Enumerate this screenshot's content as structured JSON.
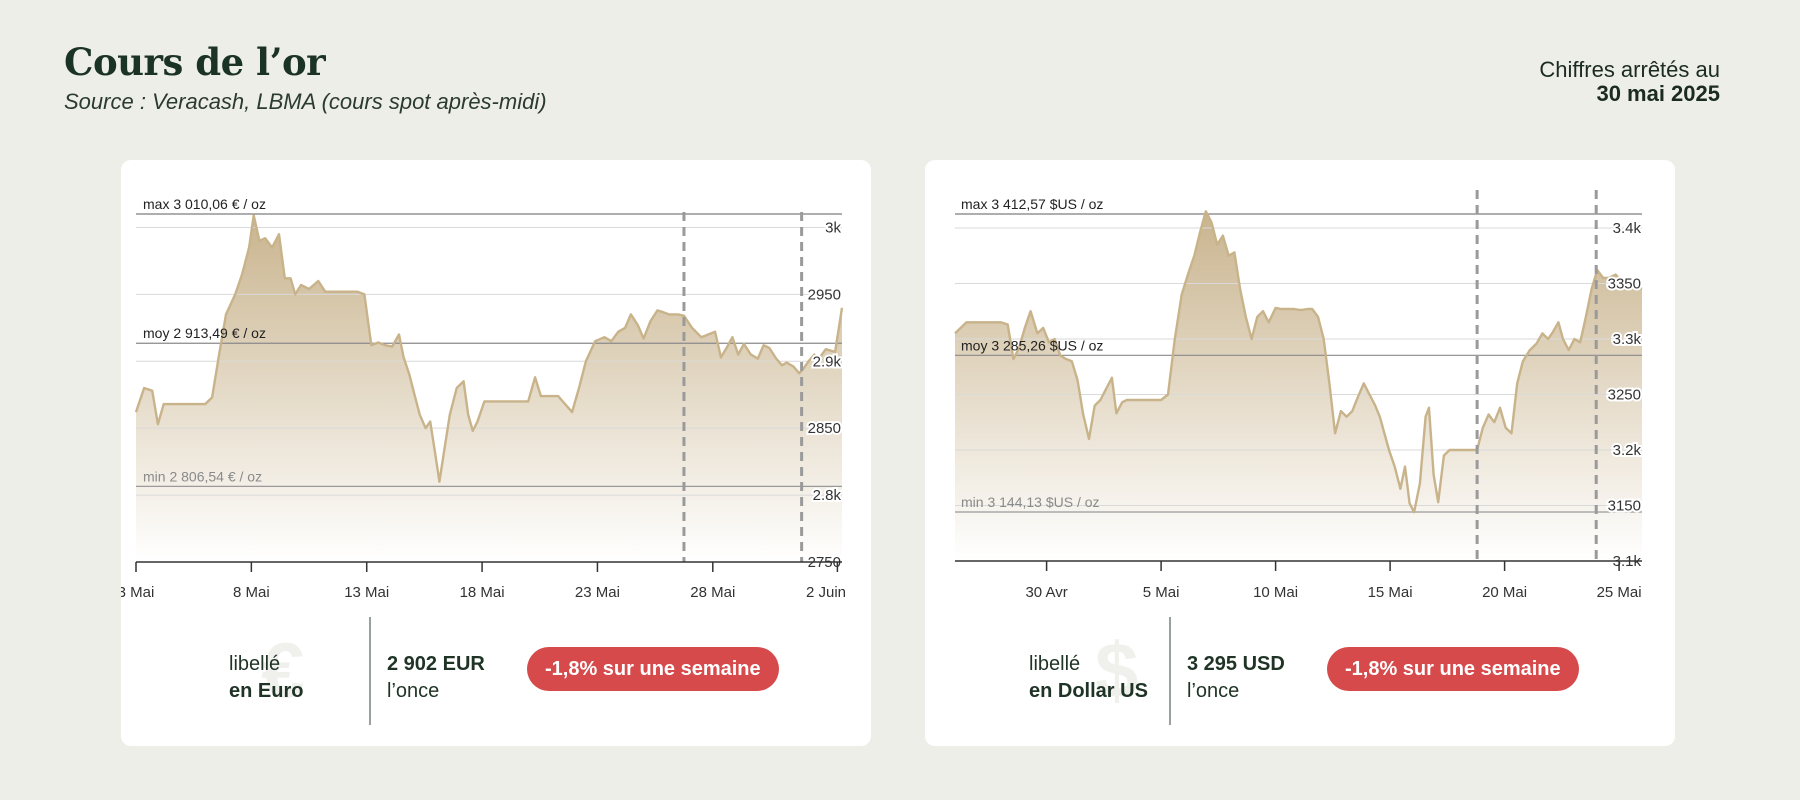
{
  "header": {
    "title": "Cours de l’or",
    "subtitle": "Source : Veracash, LBMA (cours spot après-midi)",
    "date_label": "Chiffres arrêtés au",
    "date_value": "30 mai 2025"
  },
  "colors": {
    "background": "#eeeee8",
    "card": "#ffffff",
    "area_top": "#c9b48e",
    "area_line": "#c8b38a",
    "badge": "#d64a4b",
    "text_dark": "#1f3326"
  },
  "chart_data": [
    {
      "type": "area",
      "xlabels": [
        "3 Mai",
        "8 Mai",
        "13 Mai",
        "18 Mai",
        "23 Mai",
        "28 Mai",
        "2 Juin"
      ],
      "xlim": [
        0,
        30.6
      ],
      "ylim": [
        2750,
        3010.06
      ],
      "yticks": [
        {
          "v": 3000,
          "label": "3k"
        },
        {
          "v": 2950,
          "label": "2950"
        },
        {
          "v": 2900,
          "label": "2.9k"
        },
        {
          "v": 2850,
          "label": "2850"
        },
        {
          "v": 2800,
          "label": "2.8k"
        },
        {
          "v": 2750,
          "label": "2750"
        }
      ],
      "max": {
        "value": 3010.06,
        "label": "max 3 010,06 € / oz"
      },
      "avg": {
        "value": 2913.49,
        "label": "moy 2 913,49 € / oz"
      },
      "min": {
        "value": 2806.54,
        "label": "min 2 806,54 € / oz"
      },
      "vlines": [
        23.75,
        28.85
      ],
      "points": [
        [
          0,
          2862
        ],
        [
          0.35,
          2880
        ],
        [
          0.7,
          2878
        ],
        [
          0.95,
          2853
        ],
        [
          1.2,
          2868
        ],
        [
          1.5,
          2868
        ],
        [
          2,
          2868
        ],
        [
          2.6,
          2868
        ],
        [
          3,
          2868
        ],
        [
          3.3,
          2873
        ],
        [
          3.6,
          2905
        ],
        [
          3.9,
          2935
        ],
        [
          4.3,
          2950
        ],
        [
          4.6,
          2965
        ],
        [
          4.9,
          2985
        ],
        [
          5.1,
          3009
        ],
        [
          5.35,
          2990
        ],
        [
          5.6,
          2992
        ],
        [
          5.9,
          2985
        ],
        [
          6.2,
          2995
        ],
        [
          6.45,
          2962
        ],
        [
          6.7,
          2962
        ],
        [
          6.9,
          2950
        ],
        [
          7.15,
          2957
        ],
        [
          7.5,
          2954
        ],
        [
          7.9,
          2960
        ],
        [
          8.2,
          2952
        ],
        [
          8.7,
          2952
        ],
        [
          9.2,
          2952
        ],
        [
          9.6,
          2952
        ],
        [
          9.9,
          2950
        ],
        [
          10.2,
          2912
        ],
        [
          10.5,
          2914
        ],
        [
          10.8,
          2912
        ],
        [
          11.1,
          2911
        ],
        [
          11.4,
          2920
        ],
        [
          11.6,
          2903
        ],
        [
          11.85,
          2890
        ],
        [
          12.1,
          2873
        ],
        [
          12.3,
          2860
        ],
        [
          12.55,
          2850
        ],
        [
          12.75,
          2855
        ],
        [
          12.95,
          2833
        ],
        [
          13.15,
          2810
        ],
        [
          13.4,
          2838
        ],
        [
          13.6,
          2860
        ],
        [
          13.9,
          2880
        ],
        [
          14.2,
          2885
        ],
        [
          14.4,
          2860
        ],
        [
          14.6,
          2848
        ],
        [
          14.8,
          2855
        ],
        [
          15.1,
          2870
        ],
        [
          15.5,
          2870
        ],
        [
          16,
          2870
        ],
        [
          16.5,
          2870
        ],
        [
          17,
          2870
        ],
        [
          17.3,
          2888
        ],
        [
          17.55,
          2874
        ],
        [
          17.9,
          2874
        ],
        [
          18.3,
          2874
        ],
        [
          18.6,
          2868
        ],
        [
          18.9,
          2862
        ],
        [
          19.2,
          2880
        ],
        [
          19.5,
          2900
        ],
        [
          19.9,
          2915
        ],
        [
          20.3,
          2918
        ],
        [
          20.6,
          2915
        ],
        [
          20.9,
          2922
        ],
        [
          21.2,
          2925
        ],
        [
          21.45,
          2935
        ],
        [
          21.75,
          2927
        ],
        [
          22,
          2917
        ],
        [
          22.3,
          2930
        ],
        [
          22.6,
          2938
        ],
        [
          22.8,
          2937
        ],
        [
          23.1,
          2935
        ],
        [
          23.5,
          2935
        ],
        [
          23.75,
          2934
        ],
        [
          24.1,
          2925
        ],
        [
          24.5,
          2918
        ],
        [
          24.8,
          2920
        ],
        [
          25.1,
          2922
        ],
        [
          25.35,
          2903
        ],
        [
          25.6,
          2910
        ],
        [
          25.85,
          2918
        ],
        [
          26.1,
          2905
        ],
        [
          26.35,
          2913
        ],
        [
          26.65,
          2905
        ],
        [
          26.95,
          2902
        ],
        [
          27.2,
          2912
        ],
        [
          27.45,
          2910
        ],
        [
          27.75,
          2902
        ],
        [
          28,
          2897
        ],
        [
          28.2,
          2899
        ],
        [
          28.5,
          2896
        ],
        [
          28.75,
          2891
        ],
        [
          28.95,
          2895
        ],
        [
          29.15,
          2900
        ],
        [
          29.4,
          2905
        ],
        [
          29.6,
          2902
        ],
        [
          29.9,
          2909
        ],
        [
          30.3,
          2907
        ],
        [
          30.6,
          2940
        ]
      ]
    },
    {
      "type": "area",
      "xlabels": [
        "30 Avr",
        "5 Mai",
        "10 Mai",
        "15 Mai",
        "20 Mai",
        "25 Mai"
      ],
      "xlim": [
        0,
        30
      ],
      "ylim": [
        3100,
        3412.57
      ],
      "yticks": [
        {
          "v": 3400,
          "label": "3.4k"
        },
        {
          "v": 3350,
          "label": "3350"
        },
        {
          "v": 3300,
          "label": "3.3k"
        },
        {
          "v": 3250,
          "label": "3250"
        },
        {
          "v": 3200,
          "label": "3.2k"
        },
        {
          "v": 3150,
          "label": "3150"
        },
        {
          "v": 3100,
          "label": "3.1k"
        }
      ],
      "max": {
        "value": 3412.57,
        "label": "max 3 412,57 $US / oz"
      },
      "avg": {
        "value": 3285.26,
        "label": "moy 3 285,26 $US / oz"
      },
      "min": {
        "value": 3144.13,
        "label": "min 3 144,13 $US / oz"
      },
      "vlines": [
        22.8,
        28
      ],
      "points": [
        [
          0,
          3305
        ],
        [
          0.5,
          3315
        ],
        [
          1,
          3315
        ],
        [
          1.5,
          3315
        ],
        [
          2,
          3315
        ],
        [
          2.3,
          3313
        ],
        [
          2.55,
          3282
        ],
        [
          2.8,
          3292
        ],
        [
          3.05,
          3310
        ],
        [
          3.3,
          3325
        ],
        [
          3.6,
          3305
        ],
        [
          3.85,
          3310
        ],
        [
          4.1,
          3297
        ],
        [
          4.35,
          3300
        ],
        [
          4.6,
          3285
        ],
        [
          4.85,
          3282
        ],
        [
          5.1,
          3280
        ],
        [
          5.35,
          3263
        ],
        [
          5.6,
          3232
        ],
        [
          5.85,
          3210
        ],
        [
          6.1,
          3240
        ],
        [
          6.35,
          3245
        ],
        [
          6.6,
          3255
        ],
        [
          6.85,
          3265
        ],
        [
          7.05,
          3233
        ],
        [
          7.3,
          3243
        ],
        [
          7.5,
          3245
        ],
        [
          7.8,
          3245
        ],
        [
          8.1,
          3245
        ],
        [
          8.4,
          3245
        ],
        [
          8.7,
          3245
        ],
        [
          9.0,
          3245
        ],
        [
          9.3,
          3250
        ],
        [
          9.6,
          3300
        ],
        [
          9.9,
          3340
        ],
        [
          10.2,
          3360
        ],
        [
          10.45,
          3375
        ],
        [
          10.7,
          3396
        ],
        [
          10.95,
          3415
        ],
        [
          11.2,
          3405
        ],
        [
          11.45,
          3385
        ],
        [
          11.7,
          3393
        ],
        [
          11.95,
          3375
        ],
        [
          12.2,
          3378
        ],
        [
          12.45,
          3345
        ],
        [
          12.7,
          3320
        ],
        [
          12.95,
          3300
        ],
        [
          13.2,
          3320
        ],
        [
          13.45,
          3325
        ],
        [
          13.7,
          3315
        ],
        [
          14,
          3328
        ],
        [
          14.25,
          3327
        ],
        [
          14.5,
          3327
        ],
        [
          14.8,
          3327
        ],
        [
          15.1,
          3326
        ],
        [
          15.4,
          3327
        ],
        [
          15.6,
          3327
        ],
        [
          15.85,
          3320
        ],
        [
          16.1,
          3300
        ],
        [
          16.35,
          3260
        ],
        [
          16.6,
          3215
        ],
        [
          16.85,
          3235
        ],
        [
          17.1,
          3230
        ],
        [
          17.35,
          3235
        ],
        [
          17.6,
          3248
        ],
        [
          17.85,
          3260
        ],
        [
          18.1,
          3250
        ],
        [
          18.35,
          3240
        ],
        [
          18.55,
          3230
        ],
        [
          18.75,
          3215
        ],
        [
          18.95,
          3200
        ],
        [
          19.2,
          3185
        ],
        [
          19.45,
          3165
        ],
        [
          19.65,
          3185
        ],
        [
          19.85,
          3152
        ],
        [
          20.05,
          3144
        ],
        [
          20.3,
          3170
        ],
        [
          20.55,
          3230
        ],
        [
          20.7,
          3238
        ],
        [
          20.9,
          3178
        ],
        [
          21.1,
          3153
        ],
        [
          21.35,
          3195
        ],
        [
          21.6,
          3200
        ],
        [
          21.85,
          3200
        ],
        [
          22.1,
          3200
        ],
        [
          22.4,
          3200
        ],
        [
          22.8,
          3200
        ],
        [
          23.05,
          3220
        ],
        [
          23.3,
          3232
        ],
        [
          23.55,
          3225
        ],
        [
          23.8,
          3238
        ],
        [
          24.05,
          3220
        ],
        [
          24.3,
          3215
        ],
        [
          24.55,
          3260
        ],
        [
          24.8,
          3280
        ],
        [
          25.1,
          3290
        ],
        [
          25.4,
          3296
        ],
        [
          25.65,
          3305
        ],
        [
          25.9,
          3300
        ],
        [
          26.1,
          3306
        ],
        [
          26.35,
          3315
        ],
        [
          26.55,
          3300
        ],
        [
          26.8,
          3290
        ],
        [
          27.05,
          3300
        ],
        [
          27.3,
          3297
        ],
        [
          27.55,
          3320
        ],
        [
          27.8,
          3345
        ],
        [
          28.05,
          3362
        ],
        [
          28.3,
          3355
        ],
        [
          28.55,
          3355
        ],
        [
          28.85,
          3358
        ],
        [
          29.1,
          3352
        ],
        [
          29.45,
          3355
        ],
        [
          29.7,
          3348
        ],
        [
          30,
          3345
        ]
      ]
    }
  ],
  "cards": [
    {
      "currency_symbol": "€",
      "label_top": "libellé",
      "label_bottom": "en Euro",
      "price": "2 902 EUR",
      "unit": "l’once",
      "change": "-1,8% sur une semaine"
    },
    {
      "currency_symbol": "$",
      "label_top": "libellé",
      "label_bottom": "en Dollar US",
      "price": "3 295 USD",
      "unit": "l’once",
      "change": "-1,8% sur une semaine"
    }
  ]
}
